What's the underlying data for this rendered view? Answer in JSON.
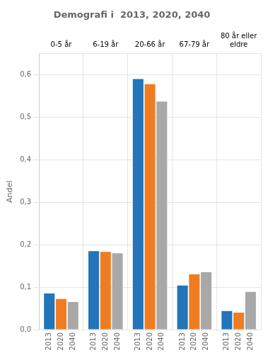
{
  "chart_data": {
    "type": "bar",
    "title": "Demografi i  2013, 2020, 2040",
    "ylabel": "Andel",
    "categories": [
      "0-5 år",
      "6-19 år",
      "20-66 år",
      "67-79 år",
      "80 år eller\neldre"
    ],
    "series": [
      {
        "name": "2013",
        "color": "#2175b8",
        "values": [
          0.085,
          0.185,
          0.59,
          0.104,
          0.044
        ]
      },
      {
        "name": "2020",
        "color": "#f07c22",
        "values": [
          0.072,
          0.183,
          0.578,
          0.13,
          0.04
        ]
      },
      {
        "name": "2040",
        "color": "#a8a8a8",
        "values": [
          0.065,
          0.18,
          0.537,
          0.135,
          0.089
        ]
      }
    ],
    "ylim": [
      0,
      0.65
    ],
    "yticks": [
      {
        "value": 0.0,
        "label": "0,0"
      },
      {
        "value": 0.1,
        "label": "0,1"
      },
      {
        "value": 0.2,
        "label": "0,2"
      },
      {
        "value": 0.3,
        "label": "0,3"
      },
      {
        "value": 0.4,
        "label": "0,4"
      },
      {
        "value": 0.5,
        "label": "0,5"
      },
      {
        "value": 0.6,
        "label": "0,6"
      }
    ],
    "grid": true
  }
}
